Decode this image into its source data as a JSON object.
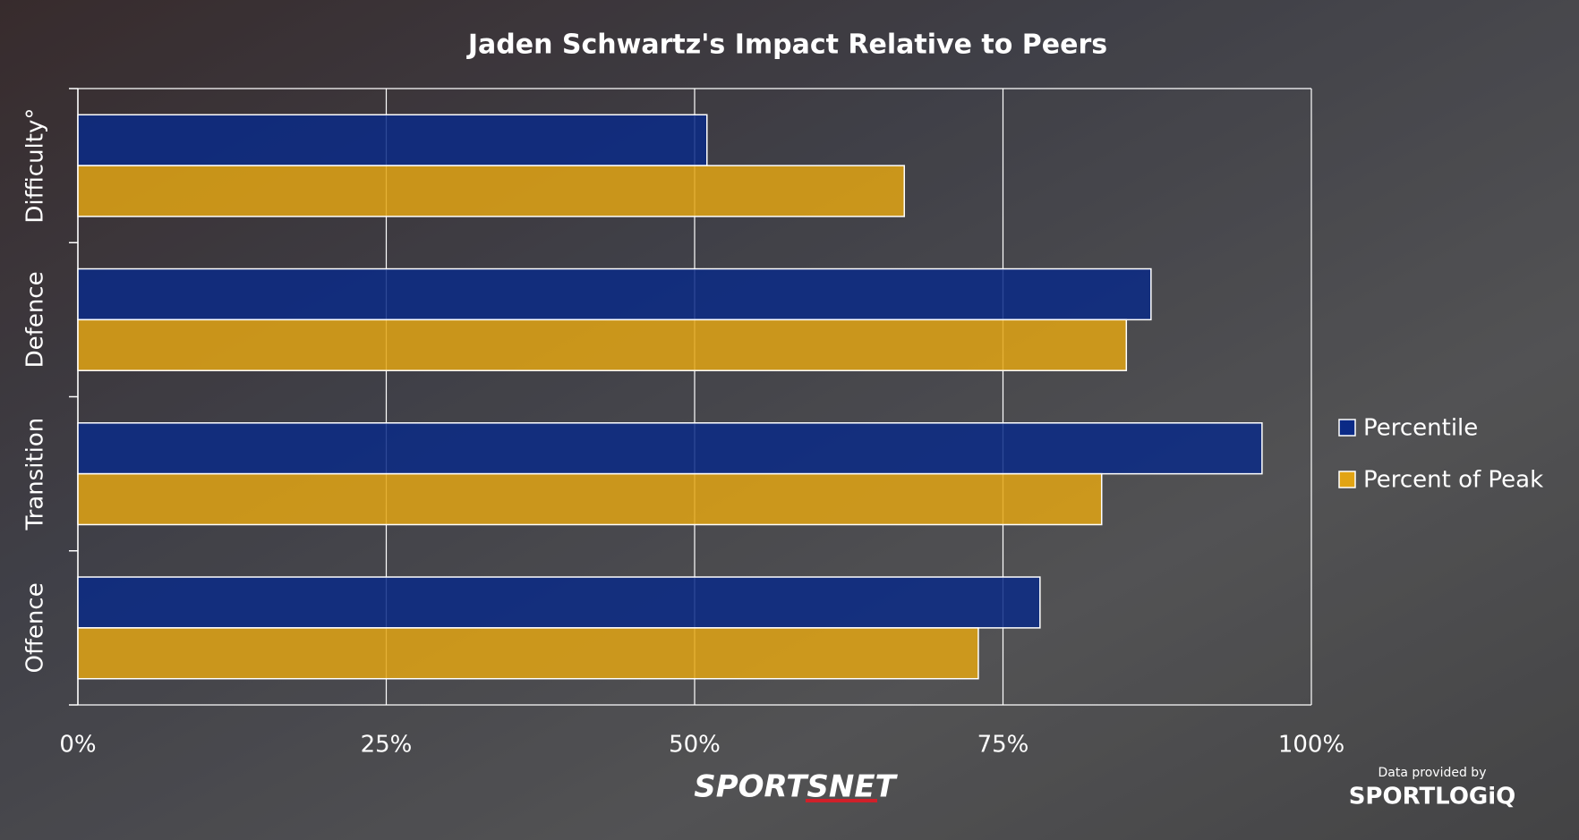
{
  "chart_data": {
    "type": "barh",
    "title": "Jaden Schwartz's Impact Relative to Peers",
    "categories": [
      "Difficulty°",
      "Defence",
      "Transition",
      "Offence"
    ],
    "series": [
      {
        "name": "Percentile",
        "color": "#0b2a86",
        "values": [
          51,
          87,
          96,
          78
        ]
      },
      {
        "name": "Percent of Peak",
        "color": "#e2a414",
        "values": [
          67,
          85,
          83,
          73
        ]
      }
    ],
    "xlim": [
      0,
      100
    ],
    "xticks": [
      {
        "value": 0,
        "label": "0%"
      },
      {
        "value": 25,
        "label": "25%"
      },
      {
        "value": 50,
        "label": "50%"
      },
      {
        "value": 75,
        "label": "75%"
      },
      {
        "value": 100,
        "label": "100%"
      }
    ],
    "grid": true,
    "legend": "right"
  },
  "branding": {
    "network": "SPORTSNET",
    "credit": "Data provided by",
    "provider": "SPORTLOGiQ"
  }
}
